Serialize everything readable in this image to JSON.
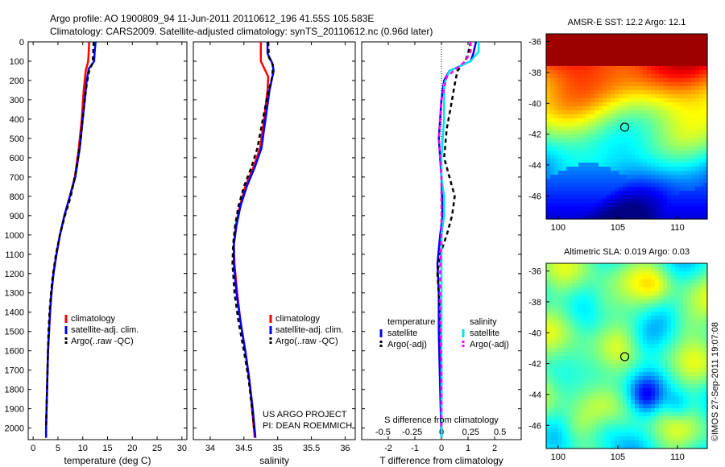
{
  "header": {
    "line1": "Argo profile: AO 1900809_94 11-Jun-2011 20110612_196 41.55S 105.583E",
    "line2": "Climatology: CARS2009. Satellite-adjusted climatology: synTS_20110612.nc (0.96d later)"
  },
  "credits": {
    "line1": "US ARGO PROJECT",
    "line2": "PI: DEAN ROEMMICH"
  },
  "stamp": "©IMOS 27-Sep-2011 19:07:08",
  "colors": {
    "climatology": "#ff0000",
    "satellite": "#0000ff",
    "argo": "#000000",
    "sal_satellite": "#00e5ee",
    "sal_argo": "#ff00ff"
  },
  "chart_data": [
    {
      "type": "line",
      "id": "temperature",
      "xlabel": "temperature (deg C)",
      "xlim": [
        -1,
        31
      ],
      "xticks": [
        0,
        5,
        10,
        15,
        20,
        25,
        30
      ],
      "ylim": [
        2060,
        0
      ],
      "yticks": [
        0,
        100,
        200,
        300,
        400,
        500,
        600,
        700,
        800,
        900,
        1000,
        1100,
        1200,
        1300,
        1400,
        1500,
        1600,
        1700,
        1800,
        1900,
        2000
      ],
      "legend": [
        "climatology",
        "satellite-adj. clim.",
        "Argo(..raw -QC)"
      ],
      "series": [
        {
          "name": "climatology",
          "color": "#ff0000",
          "dash": "",
          "points": [
            [
              11.3,
              0
            ],
            [
              11.2,
              50
            ],
            [
              11.1,
              100
            ],
            [
              10.6,
              150
            ],
            [
              10.2,
              250
            ],
            [
              9.8,
              400
            ],
            [
              9.2,
              550
            ],
            [
              8.4,
              700
            ],
            [
              7.4,
              800
            ],
            [
              6.3,
              900
            ],
            [
              5.4,
              1000
            ],
            [
              4.7,
              1100
            ],
            [
              4.1,
              1200
            ],
            [
              3.7,
              1300
            ],
            [
              3.4,
              1400
            ],
            [
              3.2,
              1500
            ],
            [
              3.0,
              1600
            ],
            [
              2.9,
              1700
            ],
            [
              2.8,
              1800
            ],
            [
              2.7,
              1900
            ],
            [
              2.6,
              2000
            ],
            [
              2.6,
              2050
            ]
          ]
        },
        {
          "name": "satellite-adj. clim.",
          "color": "#0000ff",
          "dash": "",
          "points": [
            [
              12.6,
              0
            ],
            [
              12.4,
              50
            ],
            [
              12.3,
              100
            ],
            [
              11.2,
              140
            ],
            [
              10.8,
              200
            ],
            [
              10.4,
              300
            ],
            [
              10.0,
              400
            ],
            [
              9.4,
              550
            ],
            [
              8.5,
              700
            ],
            [
              7.4,
              800
            ],
            [
              6.3,
              900
            ],
            [
              5.4,
              1000
            ],
            [
              4.7,
              1100
            ],
            [
              4.1,
              1200
            ],
            [
              3.7,
              1300
            ],
            [
              3.4,
              1400
            ],
            [
              3.2,
              1500
            ],
            [
              3.0,
              1600
            ],
            [
              2.9,
              1700
            ],
            [
              2.8,
              1800
            ],
            [
              2.7,
              1900
            ],
            [
              2.6,
              2000
            ],
            [
              2.6,
              2050
            ]
          ]
        },
        {
          "name": "Argo(..raw -QC)",
          "color": "#000000",
          "dash": "5,4",
          "points": [
            [
              12.2,
              0
            ],
            [
              12.1,
              60
            ],
            [
              12.0,
              110
            ],
            [
              11.3,
              150
            ],
            [
              10.8,
              220
            ],
            [
              10.2,
              350
            ],
            [
              9.6,
              500
            ],
            [
              8.8,
              650
            ],
            [
              7.6,
              800
            ],
            [
              6.4,
              900
            ],
            [
              5.4,
              1000
            ],
            [
              4.6,
              1100
            ],
            [
              4.0,
              1200
            ],
            [
              3.6,
              1300
            ],
            [
              3.3,
              1400
            ],
            [
              3.1,
              1500
            ],
            [
              3.0,
              1600
            ],
            [
              2.9,
              1700
            ],
            [
              2.8,
              1800
            ],
            [
              2.7,
              1900
            ],
            [
              2.6,
              2000
            ]
          ]
        }
      ]
    },
    {
      "type": "line",
      "id": "salinity",
      "xlabel": "salinity",
      "xlim": [
        33.75,
        36.15
      ],
      "xticks": [
        34,
        34.5,
        35,
        35.5,
        36
      ],
      "ylim": [
        2060,
        0
      ],
      "yticks": [
        0,
        100,
        200,
        300,
        400,
        500,
        600,
        700,
        800,
        900,
        1000,
        1100,
        1200,
        1300,
        1400,
        1500,
        1600,
        1700,
        1800,
        1900,
        2000
      ],
      "legend": [
        "climatology",
        "satellite-adj. clim.",
        "Argo(..raw -QC)"
      ],
      "series": [
        {
          "name": "climatology",
          "color": "#ff0000",
          "dash": "",
          "points": [
            [
              34.75,
              0
            ],
            [
              34.75,
              100
            ],
            [
              34.86,
              180
            ],
            [
              34.85,
              250
            ],
            [
              34.8,
              400
            ],
            [
              34.74,
              550
            ],
            [
              34.64,
              650
            ],
            [
              34.52,
              750
            ],
            [
              34.44,
              850
            ],
            [
              34.38,
              950
            ],
            [
              34.35,
              1050
            ],
            [
              34.36,
              1150
            ],
            [
              34.4,
              1300
            ],
            [
              34.45,
              1450
            ],
            [
              34.52,
              1600
            ],
            [
              34.58,
              1750
            ],
            [
              34.62,
              1900
            ],
            [
              34.66,
              2050
            ]
          ]
        },
        {
          "name": "satellite-adj. clim.",
          "color": "#0000ff",
          "dash": "",
          "points": [
            [
              34.85,
              0
            ],
            [
              34.85,
              60
            ],
            [
              34.92,
              110
            ],
            [
              34.94,
              150
            ],
            [
              34.88,
              250
            ],
            [
              34.82,
              400
            ],
            [
              34.76,
              550
            ],
            [
              34.66,
              650
            ],
            [
              34.54,
              750
            ],
            [
              34.45,
              850
            ],
            [
              34.39,
              950
            ],
            [
              34.35,
              1050
            ],
            [
              34.35,
              1150
            ],
            [
              34.39,
              1300
            ],
            [
              34.45,
              1450
            ],
            [
              34.52,
              1600
            ],
            [
              34.58,
              1750
            ],
            [
              34.63,
              1900
            ],
            [
              34.67,
              2050
            ]
          ]
        },
        {
          "name": "Argo(..raw -QC)",
          "color": "#000000",
          "dash": "5,4",
          "points": [
            [
              34.86,
              0
            ],
            [
              34.87,
              80
            ],
            [
              34.93,
              120
            ],
            [
              34.92,
              180
            ],
            [
              34.86,
              260
            ],
            [
              34.78,
              400
            ],
            [
              34.7,
              550
            ],
            [
              34.61,
              650
            ],
            [
              34.5,
              750
            ],
            [
              34.42,
              850
            ],
            [
              34.37,
              950
            ],
            [
              34.34,
              1050
            ],
            [
              34.33,
              1150
            ],
            [
              34.36,
              1300
            ],
            [
              34.42,
              1450
            ],
            [
              34.5,
              1600
            ],
            [
              34.57,
              1750
            ],
            [
              34.62,
              1900
            ],
            [
              34.65,
              2000
            ]
          ]
        }
      ]
    },
    {
      "type": "line",
      "id": "difference",
      "xlabel": "T difference from climatology",
      "xlabel_top": "S difference from climatology",
      "xlim": [
        -3.0,
        3.0
      ],
      "xticks": [
        -2,
        -1,
        0,
        1,
        2
      ],
      "top_ticks": [
        [
          "-0.5",
          -2.2
        ],
        [
          "-0.25",
          -1.1
        ],
        [
          "0",
          0
        ],
        [
          "0.25",
          1.1
        ],
        [
          "0.5",
          2.2
        ]
      ],
      "ylim": [
        2060,
        0
      ],
      "legend_titles": [
        "temperature",
        "salinity"
      ],
      "legend": [
        [
          "satellite",
          "Argo(-adj)"
        ],
        [
          "satellite",
          "Argo(-adj)"
        ]
      ],
      "series": [
        {
          "name": "satellite",
          "color": "#0000ff",
          "dash": "",
          "points": [
            [
              1.3,
              0
            ],
            [
              1.2,
              60
            ],
            [
              1.1,
              100
            ],
            [
              0.3,
              150
            ],
            [
              0.1,
              200
            ],
            [
              0,
              300
            ],
            [
              -0.1,
              500
            ],
            [
              0,
              700
            ],
            [
              0.05,
              900
            ],
            [
              -0.05,
              1000
            ],
            [
              -0.15,
              1150
            ],
            [
              -0.1,
              1300
            ],
            [
              -0.1,
              1500
            ],
            [
              -0.05,
              1800
            ],
            [
              0,
              2050
            ]
          ]
        },
        {
          "name": "Argo(-adj)",
          "color": "#000000",
          "dash": "5,4",
          "points": [
            [
              1.1,
              0
            ],
            [
              1.0,
              60
            ],
            [
              0.9,
              100
            ],
            [
              0.6,
              150
            ],
            [
              0.5,
              220
            ],
            [
              0.4,
              300
            ],
            [
              0.2,
              450
            ],
            [
              0.1,
              600
            ],
            [
              0.3,
              700
            ],
            [
              0.5,
              800
            ],
            [
              0.4,
              900
            ],
            [
              0.2,
              1000
            ],
            [
              -0.05,
              1100
            ],
            [
              -0.15,
              1200
            ],
            [
              -0.05,
              1400
            ],
            [
              0,
              1700
            ],
            [
              0,
              2000
            ]
          ]
        },
        {
          "name": "satellite",
          "color": "#00e5ee",
          "dash": "",
          "points": [
            [
              1.4,
              0
            ],
            [
              1.4,
              50
            ],
            [
              1.1,
              100
            ],
            [
              0.3,
              150
            ],
            [
              0.1,
              220
            ],
            [
              0.1,
              400
            ],
            [
              0,
              600
            ],
            [
              0,
              700
            ],
            [
              0.1,
              800
            ],
            [
              0.1,
              900
            ],
            [
              0,
              1000
            ],
            [
              0,
              1200
            ],
            [
              0,
              1500
            ],
            [
              0,
              1800
            ],
            [
              0,
              2050
            ]
          ]
        },
        {
          "name": "Argo(-adj)",
          "color": "#ff00ff",
          "dash": "5,4",
          "points": [
            [
              1.1,
              0
            ],
            [
              1.1,
              50
            ],
            [
              0.9,
              100
            ],
            [
              0.2,
              180
            ],
            [
              0,
              300
            ],
            [
              -0.1,
              500
            ],
            [
              0,
              700
            ],
            [
              0,
              900
            ],
            [
              0,
              1000
            ],
            [
              -0.05,
              1200
            ],
            [
              -0.05,
              1400
            ],
            [
              0,
              1700
            ],
            [
              0,
              2000
            ]
          ]
        }
      ]
    },
    {
      "type": "heatmap",
      "id": "sst",
      "title": "AMSR-E SST: 12.2 Argo: 12.1",
      "xlim": [
        99,
        112.5
      ],
      "ylim": [
        -47.5,
        -35.5
      ],
      "xticks": [
        100,
        105,
        110
      ],
      "yticks": [
        -36,
        -38,
        -40,
        -42,
        -44,
        -46
      ],
      "marker": {
        "lon": 105.583,
        "lat": -41.55
      }
    },
    {
      "type": "heatmap",
      "id": "sla",
      "title": "Altimetric SLA: 0.019 Argo: 0.03",
      "xlim": [
        99,
        112.5
      ],
      "ylim": [
        -47.5,
        -35.5
      ],
      "xticks": [
        100,
        105,
        110
      ],
      "yticks": [
        -36,
        -38,
        -40,
        -42,
        -44,
        -46
      ],
      "marker": {
        "lon": 105.583,
        "lat": -41.55
      }
    }
  ]
}
